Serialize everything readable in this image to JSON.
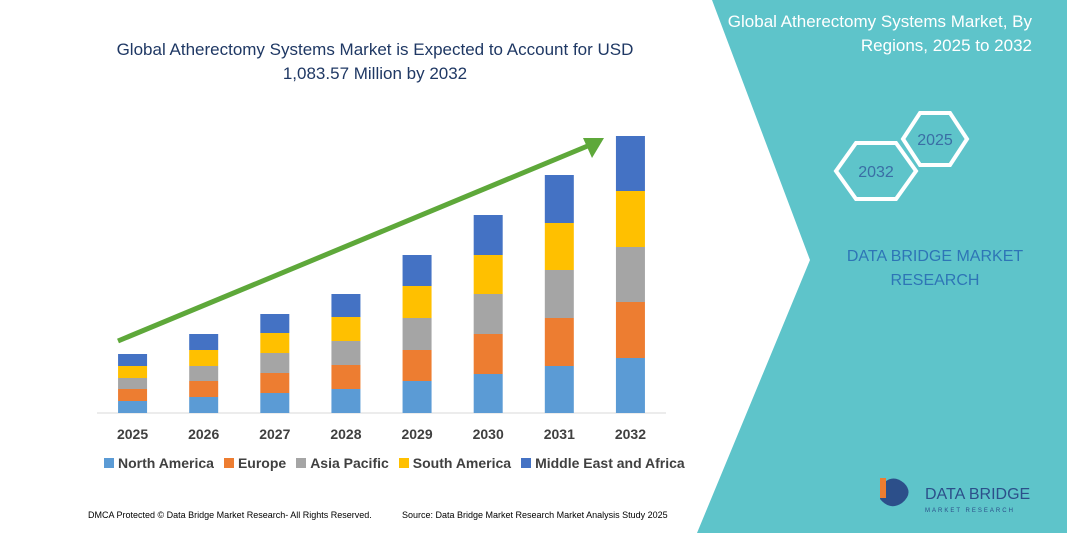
{
  "chart_data": {
    "type": "bar",
    "stacked": true,
    "title": "Global Atherectomy Systems Market is Expected to Account for USD 1,083.57 Million by 2032",
    "categories": [
      "2025",
      "2026",
      "2027",
      "2028",
      "2029",
      "2030",
      "2031",
      "2032"
    ],
    "series": [
      {
        "name": "North America",
        "color": "#5b9bd5",
        "values": [
          12,
          16,
          20,
          24,
          32,
          39,
          47,
          55
        ]
      },
      {
        "name": "Europe",
        "color": "#ed7d31",
        "values": [
          12,
          16,
          20,
          24,
          31,
          40,
          48,
          56
        ]
      },
      {
        "name": "Asia Pacific",
        "color": "#a5a5a5",
        "values": [
          11,
          15,
          20,
          24,
          32,
          40,
          48,
          55
        ]
      },
      {
        "name": "South America",
        "color": "#ffc000",
        "values": [
          12,
          16,
          20,
          24,
          32,
          39,
          47,
          56
        ]
      },
      {
        "name": "Middle East and Africa",
        "color": "#4472c4",
        "values": [
          12,
          16,
          19,
          23,
          31,
          40,
          48,
          55
        ]
      }
    ],
    "ylim": [
      0,
      300
    ],
    "legend": "bottom"
  },
  "panel": {
    "title": "Global Atherectomy Systems Market, By Regions, 2025 to 2032",
    "hex_labels": [
      "2032",
      "2025"
    ],
    "brand": "DATA BRIDGE MARKET RESEARCH"
  },
  "logo": {
    "name": "DATA BRIDGE",
    "tagline": "MARKET RESEARCH"
  },
  "footer": {
    "left": "DMCA Protected © Data Bridge Market Research- All Rights Reserved.",
    "right": "Source: Data Bridge Market Research Market Analysis Study 2025"
  }
}
